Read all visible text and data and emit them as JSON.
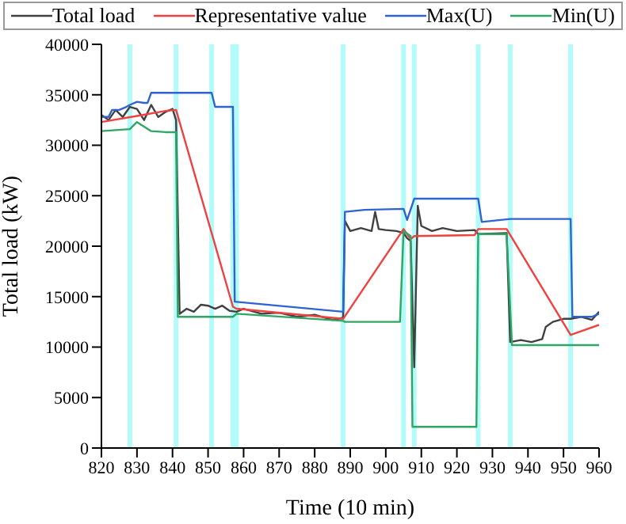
{
  "chart_data": {
    "type": "line",
    "xlabel": "Time (10 min)",
    "ylabel": "Total load (kW)",
    "xlim": [
      820,
      960
    ],
    "xticks": [
      820,
      830,
      840,
      850,
      860,
      870,
      880,
      890,
      900,
      910,
      920,
      930,
      940,
      950,
      960
    ],
    "ylim": [
      0,
      40000
    ],
    "yticks": [
      0,
      5000,
      10000,
      15000,
      20000,
      25000,
      30000,
      35000,
      40000
    ],
    "legend": "top",
    "grid": false,
    "marker": "none",
    "line_style": "solid",
    "ref_lines": [
      {
        "axis": "x",
        "value": 828,
        "color": "#b3fbfb"
      },
      {
        "axis": "x",
        "value": 841,
        "color": "#b3fbfb"
      },
      {
        "axis": "x",
        "value": 851,
        "color": "#b3fbfb"
      },
      {
        "axis": "x",
        "value": 857,
        "color": "#b3fbfb"
      },
      {
        "axis": "x",
        "value": 858,
        "color": "#b3fbfb"
      },
      {
        "axis": "x",
        "value": 888,
        "color": "#b3fbfb"
      },
      {
        "axis": "x",
        "value": 905,
        "color": "#b3fbfb"
      },
      {
        "axis": "x",
        "value": 908,
        "color": "#b3fbfb"
      },
      {
        "axis": "x",
        "value": 926,
        "color": "#b3fbfb"
      },
      {
        "axis": "x",
        "value": 935,
        "color": "#b3fbfb"
      },
      {
        "axis": "x",
        "value": 952,
        "color": "#b3fbfb"
      }
    ],
    "series": [
      {
        "name": "Total load",
        "color": "#404040",
        "x": [
          820,
          822,
          824,
          826,
          828,
          830,
          832,
          834,
          836,
          838,
          840,
          841,
          842,
          844,
          846,
          848,
          850,
          852,
          854,
          856,
          858,
          860,
          865,
          870,
          875,
          880,
          885,
          888,
          888.5,
          890,
          893,
          896,
          897,
          898,
          900,
          903,
          905,
          906,
          907,
          908,
          909,
          910,
          913,
          916,
          920,
          925,
          926,
          934,
          935,
          938,
          941,
          944,
          945,
          947,
          950,
          952,
          955,
          958,
          960
        ],
        "values": [
          33000,
          32500,
          33500,
          32800,
          33800,
          33600,
          32500,
          34000,
          32800,
          33300,
          33600,
          32500,
          13300,
          13800,
          13500,
          14200,
          14100,
          13800,
          14100,
          13600,
          13500,
          13800,
          13300,
          13400,
          13000,
          13200,
          12700,
          12900,
          22500,
          21500,
          21800,
          21500,
          23400,
          21700,
          21600,
          21500,
          21300,
          20800,
          20500,
          8000,
          24000,
          22000,
          21500,
          21800,
          21500,
          21600,
          21200,
          21300,
          10500,
          10700,
          10500,
          10800,
          12000,
          12500,
          12800,
          12800,
          13000,
          12700,
          13500
        ]
      },
      {
        "name": "Representative value",
        "color": "#f04040",
        "x": [
          820,
          830,
          838,
          841,
          857,
          858,
          888,
          905,
          907,
          908,
          925,
          926,
          934,
          952,
          960
        ],
        "values": [
          32300,
          32900,
          33400,
          33500,
          14000,
          13800,
          12800,
          21700,
          20700,
          21000,
          21100,
          21700,
          21700,
          11200,
          12200
        ]
      },
      {
        "name": "Max(U)",
        "color": "#2f63d0",
        "x": [
          820,
          822,
          823,
          825,
          827,
          828,
          830,
          832,
          833,
          834,
          851,
          852,
          857,
          857.5,
          888,
          888.5,
          894,
          905,
          906,
          908,
          926,
          927,
          935,
          952,
          952.5,
          958,
          960
        ],
        "values": [
          32800,
          32800,
          33500,
          33500,
          33800,
          34000,
          34300,
          34200,
          34200,
          35200,
          35200,
          33800,
          33800,
          14500,
          13500,
          23400,
          23600,
          23700,
          22600,
          24700,
          24700,
          22400,
          22700,
          22700,
          13000,
          13000,
          13300
        ]
      },
      {
        "name": "Min(U)",
        "color": "#2ea664",
        "x": [
          820,
          828,
          830,
          834,
          838,
          841,
          841.5,
          857,
          858,
          888,
          888.5,
          904,
          905,
          907,
          907.5,
          925.5,
          926,
          934,
          935.5,
          960
        ],
        "values": [
          31400,
          31600,
          32300,
          31400,
          31300,
          31300,
          13000,
          13000,
          13300,
          12600,
          12500,
          12500,
          21500,
          21000,
          2100,
          2100,
          21200,
          21200,
          10200,
          10200
        ]
      }
    ]
  }
}
